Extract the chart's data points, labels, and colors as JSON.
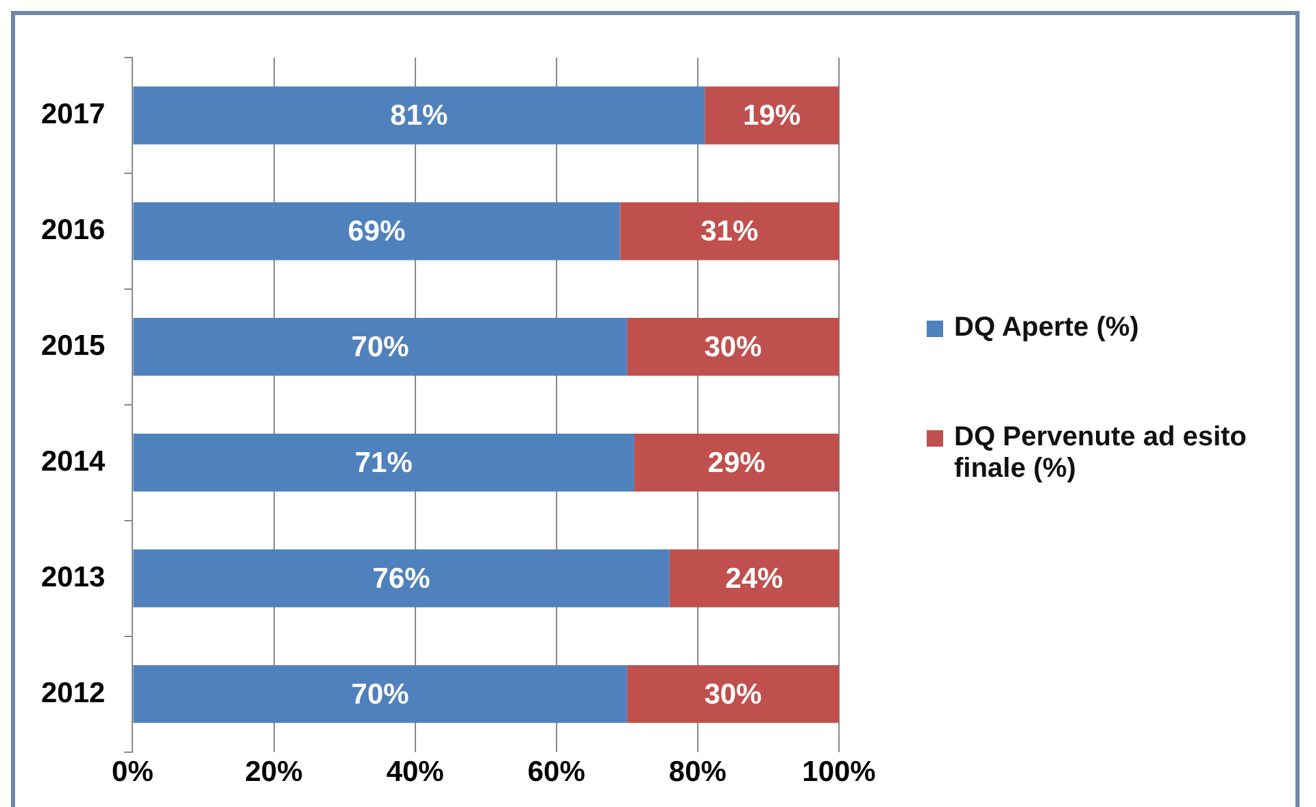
{
  "chart_data": {
    "type": "bar",
    "orientation": "horizontal",
    "stacked": true,
    "categories": [
      "2017",
      "2016",
      "2015",
      "2014",
      "2013",
      "2012"
    ],
    "series": [
      {
        "name": "DQ Aperte (%)",
        "color": "#4f81bd",
        "values": [
          81,
          69,
          70,
          71,
          76,
          70
        ],
        "value_labels": [
          "81%",
          "69%",
          "70%",
          "71%",
          "76%",
          "70%"
        ]
      },
      {
        "name": "DQ Pervenute ad esito finale (%)",
        "color": "#c0504d",
        "values": [
          19,
          31,
          30,
          29,
          24,
          30
        ],
        "value_labels": [
          "19%",
          "31%",
          "30%",
          "29%",
          "24%",
          "30%"
        ]
      }
    ],
    "xlim": [
      0,
      100
    ],
    "xticks": [
      {
        "value": 0,
        "label": "0%"
      },
      {
        "value": 20,
        "label": "20%"
      },
      {
        "value": 40,
        "label": "40%"
      },
      {
        "value": 60,
        "label": "60%"
      },
      {
        "value": 80,
        "label": "80%"
      },
      {
        "value": 100,
        "label": "100%"
      }
    ],
    "grid": "x",
    "legend": "right"
  }
}
